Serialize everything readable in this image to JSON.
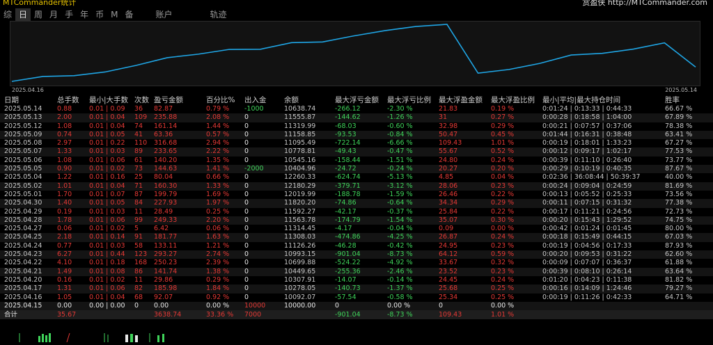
{
  "header": {
    "title": "MTCommander统计",
    "right_text": "赏盈侠 http://MTCommander.com"
  },
  "tabs": [
    "综",
    "日",
    "周",
    "月",
    "手",
    "年",
    "币",
    "M",
    "备",
    "账户",
    "轨迹"
  ],
  "active_tab": 1,
  "chart": {
    "start_date": "2025.04.16",
    "end_date": "2025.05.14",
    "line_color": "#1fa6e6",
    "values": [
      10092.07,
      10278.05,
      10307.91,
      10449.65,
      10699.88,
      10993.15,
      11126.26,
      11308.03,
      11314.45,
      11563.78,
      11592.27,
      11820.2,
      12019.99,
      12180.29,
      12260.33,
      10404.96,
      10545.16,
      10778.81,
      11095.49,
      11158.85,
      11319.99,
      11555.87,
      10638.74
    ]
  },
  "columns": [
    "日期",
    "总手数",
    "最小|大手数",
    "次数",
    "盈亏金额",
    "百分比%",
    "出入金",
    "余额",
    "最大浮亏金额",
    "最大浮亏比例",
    "最大浮盈金额",
    "最大浮盈比例",
    "最小|平均|最大持仓时间",
    "胜率"
  ],
  "rows": [
    [
      "2025.05.14",
      "0.88",
      "0.01 | 0.09",
      "36",
      "82.87",
      "0.79 %",
      "-1000",
      "10638.74",
      "-266.12",
      "-2.30 %",
      "21.83",
      "0.19 %",
      "0:01:24 | 0:13:33 | 0:44:33",
      "66.67 %"
    ],
    [
      "2025.05.13",
      "2.00",
      "0.01 | 0.04",
      "109",
      "235.88",
      "2.08 %",
      "0",
      "11555.87",
      "-144.62",
      "-1.26 %",
      "31",
      "0.27 %",
      "0:00:28 | 0:18:58 | 1:04:00",
      "67.89 %"
    ],
    [
      "2025.05.12",
      "1.08",
      "0.01 | 0.04",
      "74",
      "161.14",
      "1.44 %",
      "0",
      "11319.99",
      "-68.03",
      "-0.60 %",
      "32.98",
      "0.29 %",
      "0:00:21 | 0:07:57 | 0:37:06",
      "78.38 %"
    ],
    [
      "2025.05.09",
      "0.74",
      "0.01 | 0.05",
      "41",
      "63.36",
      "0.57 %",
      "0",
      "11158.85",
      "-93.53",
      "-0.84 %",
      "50.47",
      "0.45 %",
      "0:01:44 | 0:16:31 | 0:38:48",
      "63.41 %"
    ],
    [
      "2025.05.08",
      "2.97",
      "0.01 | 0.22",
      "110",
      "316.68",
      "2.94 %",
      "0",
      "11095.49",
      "-722.14",
      "-6.66 %",
      "109.43",
      "1.01 %",
      "0:00:19 | 0:18:01 | 1:33:23",
      "67.27 %"
    ],
    [
      "2025.05.07",
      "1.33",
      "0.01 | 0.03",
      "89",
      "233.65",
      "2.22 %",
      "0",
      "10778.81",
      "-49.43",
      "-0.47 %",
      "55.67",
      "0.52 %",
      "0:00:12 | 0:09:17 | 1:02:17",
      "77.53 %"
    ],
    [
      "2025.05.06",
      "1.08",
      "0.01 | 0.06",
      "61",
      "140.20",
      "1.35 %",
      "0",
      "10545.16",
      "-158.44",
      "-1.51 %",
      "24.80",
      "0.24 %",
      "0:00:39 | 0:11:10 | 0:26:40",
      "73.77 %"
    ],
    [
      "2025.05.05",
      "0.90",
      "0.01 | 0.02",
      "73",
      "144.63",
      "1.41 %",
      "-2000",
      "10404.96",
      "-24.72",
      "-0.24 %",
      "20.27",
      "0.20 %",
      "0:00:29 | 0:10:19 | 0:40:35",
      "87.67 %"
    ],
    [
      "2025.05.04",
      "1.22",
      "0.01 | 0.16",
      "25",
      "80.04",
      "0.66 %",
      "0",
      "12260.33",
      "-624.74",
      "-5.13 %",
      "4.85",
      "0.04 %",
      "0:02:36 | 36:08:44 | 50:39:37",
      "40.00 %"
    ],
    [
      "2025.05.02",
      "1.01",
      "0.01 | 0.04",
      "71",
      "160.30",
      "1.33 %",
      "0",
      "12180.29",
      "-379.71",
      "-3.12 %",
      "28.06",
      "0.23 %",
      "0:00:24 | 0:09:04 | 0:24:59",
      "81.69 %"
    ],
    [
      "2025.05.01",
      "1.70",
      "0.01 | 0.07",
      "87",
      "199.79",
      "1.69 %",
      "0",
      "12019.99",
      "-188.78",
      "-1.59 %",
      "26.46",
      "0.22 %",
      "0:00:13 | 0:05:52 | 0:25:33",
      "73.56 %"
    ],
    [
      "2025.04.30",
      "1.40",
      "0.01 | 0.05",
      "84",
      "227.93",
      "1.97 %",
      "0",
      "11820.20",
      "-74.86",
      "-0.64 %",
      "34.34",
      "0.29 %",
      "0:00:11 | 0:07:15 | 0:31:32",
      "77.38 %"
    ],
    [
      "2025.04.29",
      "0.19",
      "0.01 | 0.03",
      "11",
      "28.49",
      "0.25 %",
      "0",
      "11592.27",
      "-42.17",
      "-0.37 %",
      "25.84",
      "0.22 %",
      "0:00:17 | 0:11:21 | 0:24:56",
      "72.73 %"
    ],
    [
      "2025.04.28",
      "1.78",
      "0.01 | 0.06",
      "99",
      "249.33",
      "2.20 %",
      "0",
      "11563.78",
      "-174.79",
      "-1.54 %",
      "35.07",
      "0.30 %",
      "0:00:20 | 0:15:43 | 1:29:52",
      "74.75 %"
    ],
    [
      "2025.04.27",
      "0.06",
      "0.01 | 0.02",
      "5",
      "6.42",
      "0.06 %",
      "0",
      "11314.45",
      "-4.17",
      "-0.04 %",
      "0.09",
      "0.00 %",
      "0:00:42 | 0:01:24 | 0:01:45",
      "80.00 %"
    ],
    [
      "2025.04.25",
      "2.18",
      "0.01 | 0.14",
      "91",
      "181.77",
      "1.63 %",
      "0",
      "11308.03",
      "-474.86",
      "-4.25 %",
      "26.87",
      "0.24 %",
      "0:00:18 | 0:15:49 | 0:44:15",
      "67.03 %"
    ],
    [
      "2025.04.24",
      "0.77",
      "0.01 | 0.03",
      "58",
      "133.11",
      "1.21 %",
      "0",
      "11126.26",
      "-46.28",
      "-0.42 %",
      "24.95",
      "0.23 %",
      "0:00:19 | 0:04:56 | 0:17:33",
      "87.93 %"
    ],
    [
      "2025.04.23",
      "6.27",
      "0.01 | 0.44",
      "123",
      "293.27",
      "2.74 %",
      "0",
      "10993.15",
      "-901.04",
      "-8.73 %",
      "64.12",
      "0.59 %",
      "0:00:20 | 0:09:53 | 0:31:22",
      "62.60 %"
    ],
    [
      "2025.04.22",
      "4.10",
      "0.01 | 0.18",
      "168",
      "250.23",
      "2.39 %",
      "0",
      "10699.88",
      "-524.22",
      "-4.92 %",
      "33.67",
      "0.32 %",
      "0:00:09 | 0:07:07 | 0:36:37",
      "61.88 %"
    ],
    [
      "2025.04.21",
      "1.49",
      "0.01 | 0.08",
      "86",
      "141.74",
      "1.38 %",
      "0",
      "10449.65",
      "-255.36",
      "-2.46 %",
      "23.52",
      "0.23 %",
      "0:00:39 | 0:08:10 | 0:26:14",
      "63.64 %"
    ],
    [
      "2025.04.20",
      "0.16",
      "0.01 | 0.02",
      "11",
      "29.86",
      "0.29 %",
      "0",
      "10307.91",
      "-14.07",
      "-0.14 %",
      "24.45",
      "0.24 %",
      "0:01:20 | 0:04:23 | 0:11:38",
      "81.82 %"
    ],
    [
      "2025.04.17",
      "1.31",
      "0.01 | 0.06",
      "82",
      "185.98",
      "1.84 %",
      "0",
      "10278.05",
      "-140.73",
      "-1.37 %",
      "25.68",
      "0.25 %",
      "0:00:16 | 0:14:09 | 1:24:46",
      "79.27 %"
    ],
    [
      "2025.04.16",
      "1.05",
      "0.01 | 0.04",
      "68",
      "92.07",
      "0.92 %",
      "0",
      "10092.07",
      "-57.54",
      "-0.58 %",
      "25.34",
      "0.25 %",
      "0:00:19 | 0:11:26 | 0:42:33",
      "64.71 %"
    ],
    [
      "2025.04.15",
      "0.00",
      "0.00 | 0.00",
      "0",
      "0.00",
      "0.00 %",
      "10000",
      "10000.00",
      "0",
      "0.00 %",
      "0",
      "0.00 %",
      "",
      ""
    ]
  ],
  "total": [
    "合计",
    "35.67",
    "",
    "",
    "3638.74",
    "33.36 %",
    "7000",
    "",
    "-901.04",
    "-8.73 %",
    "109.43",
    "1.01 %",
    "",
    ""
  ]
}
